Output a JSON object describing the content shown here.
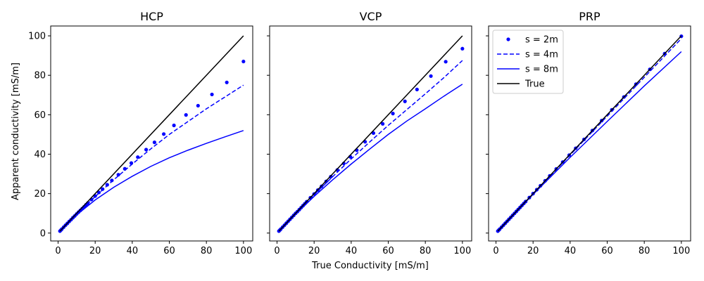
{
  "figure": {
    "xlabel": "True Conductivity [mS/m]",
    "ylabel": "Apparent conductivity [mS/m]",
    "colors": {
      "series": "#0000ff",
      "true": "#000000"
    }
  },
  "chart_data": [
    {
      "type": "line",
      "title": "HCP",
      "xlim": [
        -4,
        105
      ],
      "ylim": [
        -4,
        105
      ],
      "xticks": [
        0,
        20,
        40,
        60,
        80,
        100
      ],
      "yticks": [
        0,
        20,
        40,
        60,
        80,
        100
      ],
      "series": [
        {
          "name": "s = 2m",
          "style": "dots",
          "x": [
            1,
            1.5,
            2,
            3,
            4,
            5,
            6,
            7,
            8,
            9,
            10,
            11,
            12,
            13,
            14,
            15,
            16,
            18,
            20,
            22,
            24,
            26.5,
            29,
            32.5,
            36,
            39.5,
            43,
            47.5,
            52,
            57,
            62.5,
            69,
            75.5,
            83,
            91,
            100
          ],
          "y": [
            1,
            1.5,
            2,
            3,
            4,
            4.9,
            5.9,
            6.8,
            7.8,
            8.7,
            9.7,
            10.6,
            11.5,
            12.4,
            13.3,
            14.3,
            15.2,
            17,
            18.8,
            20.6,
            22.3,
            24.5,
            26.7,
            29.6,
            32.6,
            35.5,
            38.5,
            42.3,
            46,
            50.2,
            54.6,
            59.9,
            64.6,
            70.3,
            76.4,
            87
          ]
        },
        {
          "name": "s = 4m",
          "style": "dashed",
          "x": [
            1,
            5,
            10,
            20,
            30,
            40,
            50,
            60,
            70,
            80,
            90,
            100
          ],
          "y": [
            1,
            4.9,
            9.6,
            18.5,
            27,
            35,
            42.7,
            50,
            56.5,
            63,
            69,
            75
          ]
        },
        {
          "name": "s = 8m",
          "style": "solid",
          "x": [
            1,
            5,
            10,
            20,
            30,
            40,
            50,
            60,
            70,
            80,
            90,
            100
          ],
          "y": [
            1,
            4.8,
            9.2,
            16.8,
            23.2,
            28.8,
            33.8,
            38.2,
            42,
            45.5,
            48.8,
            52
          ]
        },
        {
          "name": "True",
          "style": "solid-black",
          "x": [
            1,
            100
          ],
          "y": [
            1,
            100
          ]
        }
      ]
    },
    {
      "type": "line",
      "title": "VCP",
      "xlim": [
        -4,
        105
      ],
      "ylim": [
        -4,
        105
      ],
      "xticks": [
        0,
        20,
        40,
        60,
        80,
        100
      ],
      "yticks": [],
      "series": [
        {
          "name": "s = 2m",
          "style": "dots",
          "x": [
            1,
            1.5,
            2,
            3,
            4,
            5,
            6,
            7,
            8,
            9,
            10,
            11,
            12,
            13,
            14,
            15,
            16,
            18,
            20,
            22,
            24,
            26.5,
            29,
            32.5,
            36,
            39.5,
            43,
            47.5,
            52,
            57,
            62.5,
            69,
            75.5,
            83,
            91,
            100
          ],
          "y": [
            1,
            1.5,
            2,
            3,
            4,
            5,
            6,
            7,
            8,
            9,
            10,
            10.9,
            11.9,
            12.9,
            13.9,
            14.9,
            15.9,
            17.9,
            19.8,
            21.8,
            23.7,
            26.2,
            28.6,
            32,
            35.3,
            38.7,
            42,
            46.3,
            50.7,
            55.4,
            60.6,
            66.8,
            72.8,
            79.6,
            86.9,
            93.5
          ]
        },
        {
          "name": "s = 4m",
          "style": "dashed",
          "x": [
            1,
            5,
            10,
            20,
            30,
            40,
            50,
            60,
            70,
            80,
            90,
            100
          ],
          "y": [
            1,
            5,
            9.8,
            19.4,
            28.6,
            37.6,
            46.2,
            54.6,
            62.6,
            70.6,
            78.8,
            87.5
          ]
        },
        {
          "name": "s = 8m",
          "style": "solid",
          "x": [
            1,
            5,
            10,
            20,
            30,
            40,
            50,
            60,
            70,
            80,
            90,
            100
          ],
          "y": [
            1,
            4.9,
            9.6,
            18.6,
            27,
            35,
            42.6,
            50,
            56.8,
            63,
            69.4,
            75.5
          ]
        },
        {
          "name": "True",
          "style": "solid-black",
          "x": [
            1,
            100
          ],
          "y": [
            1,
            100
          ]
        }
      ]
    },
    {
      "type": "line",
      "title": "PRP",
      "xlim": [
        -4,
        105
      ],
      "ylim": [
        -4,
        105
      ],
      "xticks": [
        0,
        20,
        40,
        60,
        80,
        100
      ],
      "yticks": [],
      "legend": {
        "loc": "upper-left"
      },
      "series": [
        {
          "name": "s = 2m",
          "style": "dots",
          "x": [
            1,
            1.5,
            2,
            3,
            4,
            5,
            6,
            7,
            8,
            9,
            10,
            11,
            12,
            13,
            14,
            15,
            16,
            18,
            20,
            22,
            24,
            26.5,
            29,
            32.5,
            36,
            39.5,
            43,
            47.5,
            52,
            57,
            62.5,
            69,
            75.5,
            83,
            91,
            100
          ],
          "y": [
            1,
            1.5,
            2,
            3,
            4,
            5,
            6,
            7,
            8,
            9,
            10,
            11,
            12,
            13,
            14,
            15,
            16,
            18,
            20,
            22,
            24,
            26.5,
            29,
            32.5,
            36,
            39.5,
            43,
            47.5,
            52,
            57,
            62.5,
            69,
            75.5,
            83,
            91,
            99.8
          ]
        },
        {
          "name": "s = 4m",
          "style": "dashed",
          "x": [
            1,
            10,
            20,
            40,
            60,
            80,
            100
          ],
          "y": [
            1,
            10,
            19.8,
            39.6,
            59.3,
            79,
            98.6
          ]
        },
        {
          "name": "s = 8m",
          "style": "solid",
          "x": [
            1,
            10,
            20,
            40,
            60,
            80,
            100
          ],
          "y": [
            1,
            9.9,
            19.6,
            38.4,
            56.6,
            74.6,
            92
          ]
        },
        {
          "name": "True",
          "style": "solid-black",
          "x": [
            1,
            100
          ],
          "y": [
            1,
            100
          ]
        }
      ]
    }
  ]
}
